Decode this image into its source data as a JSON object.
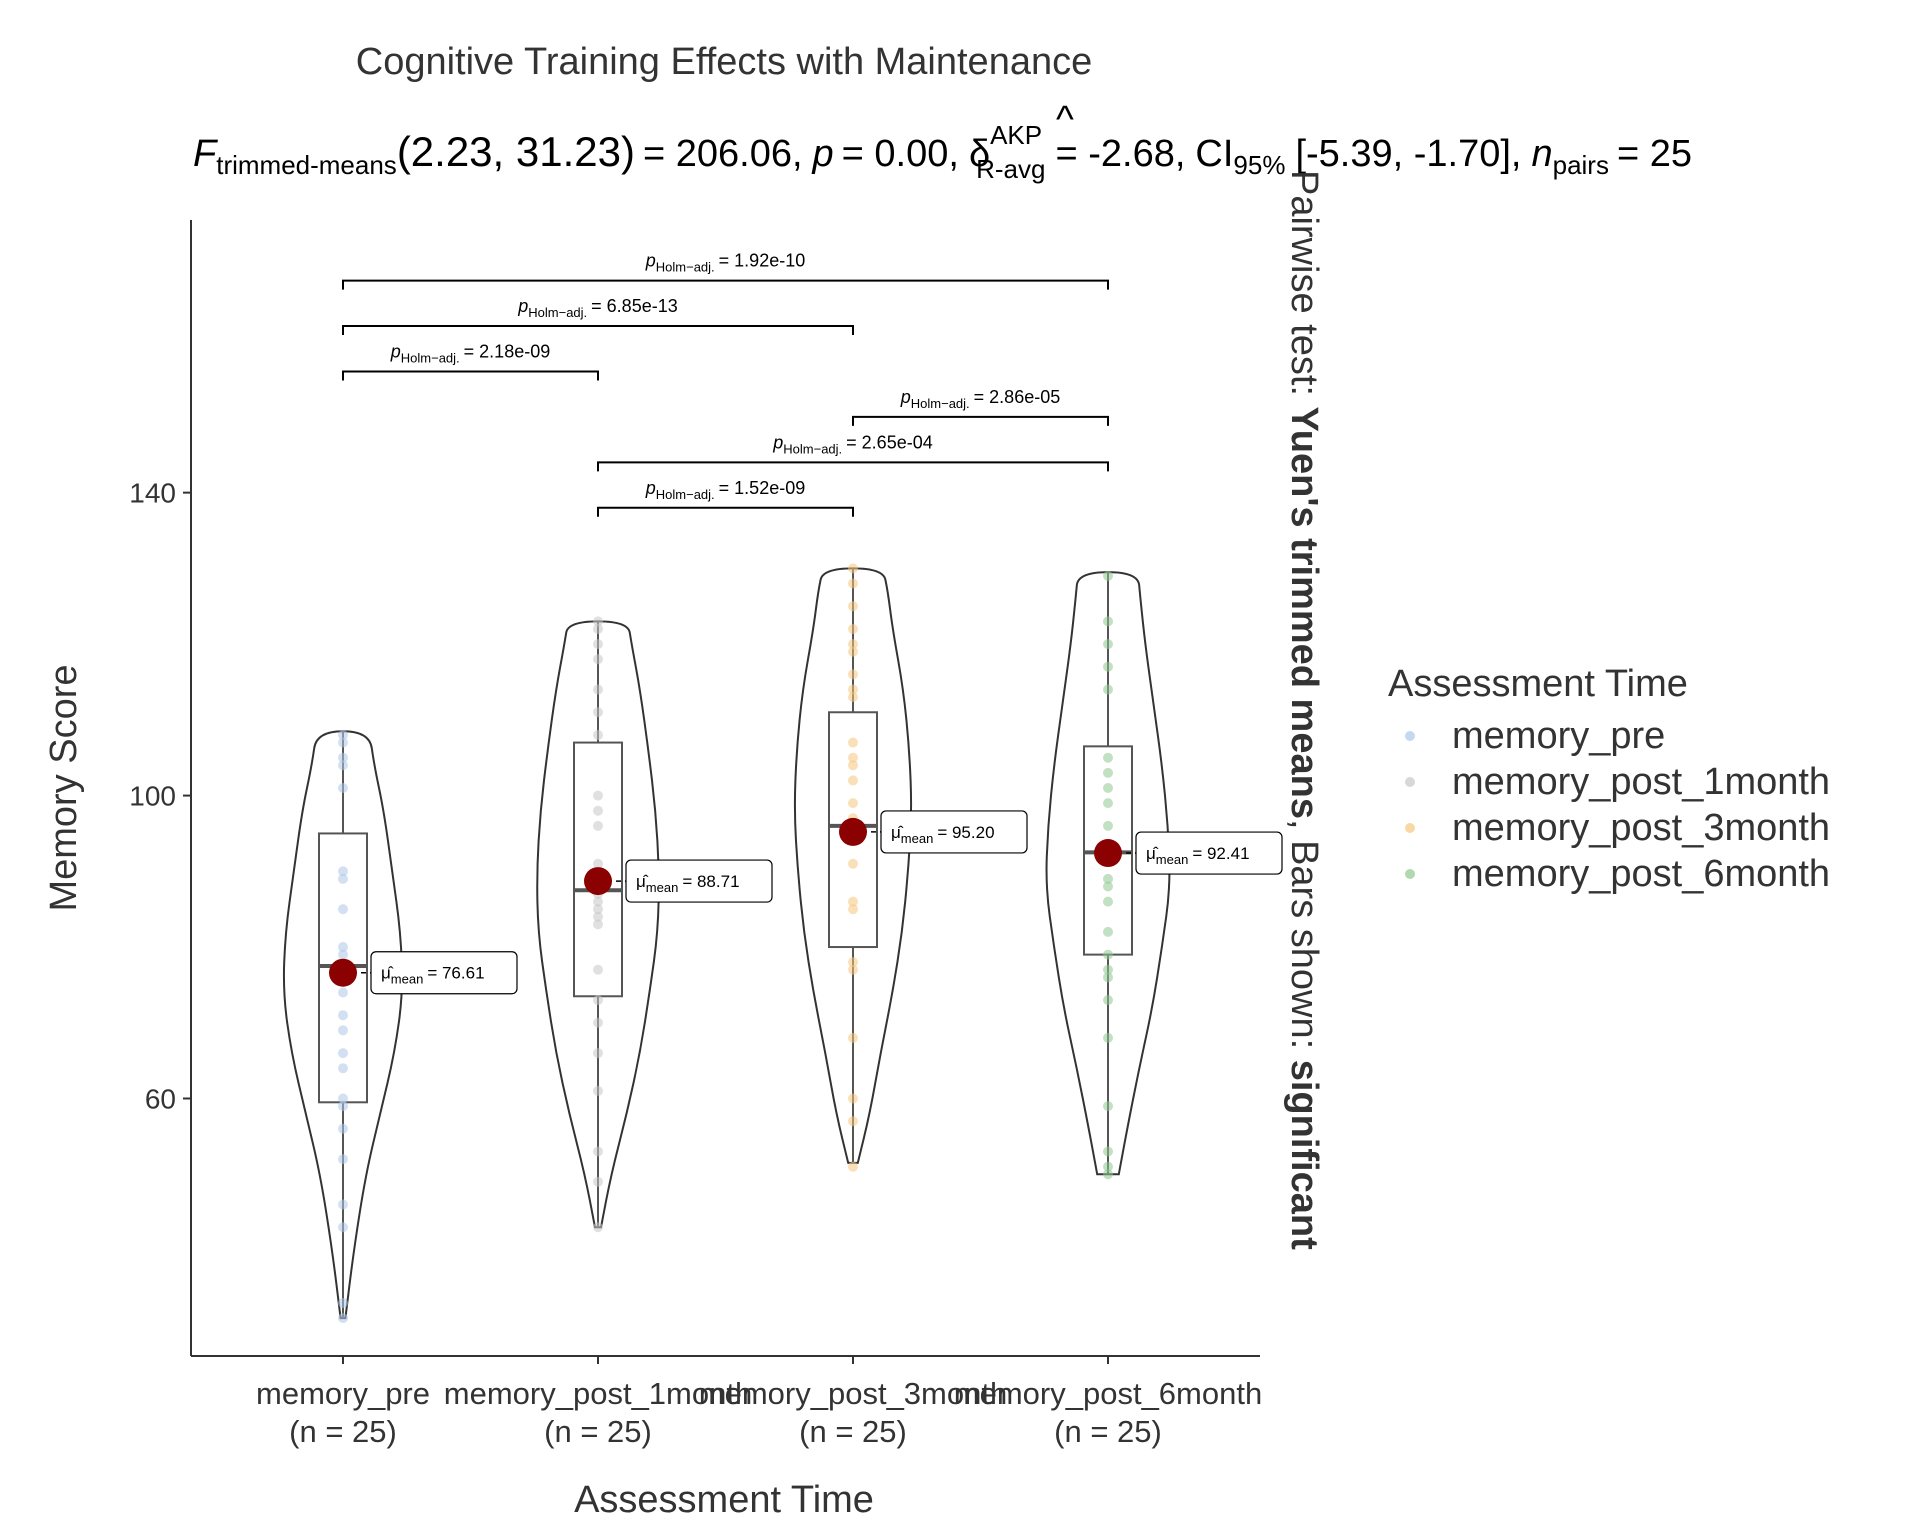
{
  "chart_data": {
    "type": "violin-box",
    "title": "Cognitive Training Effects with Maintenance",
    "subtitle": {
      "f_symbol": "F",
      "f_sub": "trimmed-means",
      "df": "(2.23, 31.23)",
      "f_value": "= 206.06,",
      "p_symbol": "p",
      "p_value": "= 0.00,",
      "effect_symbol": "δ",
      "effect_sup": "AKP",
      "effect_sub": "R-avg",
      "effect_value": "= -2.68,",
      "ci_symbol": "CI",
      "ci_sub": "95%",
      "ci_value": "[-5.39, -1.70],",
      "n_symbol": "n",
      "n_sub": "pairs",
      "n_value": "= 25"
    },
    "xlabel": "Assessment Time",
    "ylabel": "Memory Score",
    "ylim": [
      26,
      176
    ],
    "yticks": [
      60,
      100,
      140
    ],
    "y_tick_labels": [
      "60",
      "100",
      "140"
    ],
    "categories": [
      "memory_pre",
      "memory_post_1month",
      "memory_post_3month",
      "memory_post_6month"
    ],
    "category_n": [
      "(n = 25)",
      "(n = 25)",
      "(n = 25)",
      "(n = 25)"
    ],
    "colors": [
      "#aec7e8",
      "#c7c7c7",
      "#f5c77e",
      "#8fc98f"
    ],
    "mean_color": "#8b0000",
    "means": [
      76.61,
      88.71,
      95.2,
      92.41
    ],
    "mean_labels": [
      "= 76.61",
      "= 88.71",
      "= 95.20",
      "= 92.41"
    ],
    "mean_label_symbol": "μ̂",
    "mean_label_sub": "mean",
    "boxes": [
      {
        "min": 31,
        "q1": 59.5,
        "median": 77.5,
        "q3": 95,
        "max": 108.5
      },
      {
        "min": 43,
        "q1": 73.5,
        "median": 87.5,
        "q3": 107,
        "max": 123
      },
      {
        "min": 51.5,
        "q1": 80,
        "median": 96,
        "q3": 111,
        "max": 130
      },
      {
        "min": 50,
        "q1": 79,
        "median": 92.5,
        "q3": 106.5,
        "max": 129.5
      }
    ],
    "points": [
      [
        108,
        107,
        105,
        104,
        101,
        90,
        89,
        85,
        80,
        79,
        77,
        76,
        74,
        71,
        69,
        66,
        60,
        59,
        56,
        52,
        46,
        43,
        33,
        31,
        64
      ],
      [
        123,
        122,
        120,
        118,
        114,
        111,
        100,
        98,
        91,
        88,
        87,
        86,
        85,
        84,
        83,
        73,
        70,
        66,
        61,
        53,
        49,
        43,
        108,
        96,
        77
      ],
      [
        130,
        128,
        125,
        122,
        120,
        119,
        116,
        114,
        113,
        107,
        105,
        104,
        99,
        97,
        94,
        91,
        86,
        85,
        78,
        77,
        68,
        60,
        57,
        51,
        102
      ],
      [
        129,
        123,
        120,
        117,
        114,
        105,
        103,
        101,
        99,
        96,
        93,
        92,
        89,
        88,
        82,
        79,
        77,
        76,
        73,
        68,
        59,
        53,
        51,
        50,
        86
      ]
    ],
    "violins": [
      [
        [
          31,
          0.04
        ],
        [
          40,
          0.18
        ],
        [
          50,
          0.38
        ],
        [
          58,
          0.62
        ],
        [
          66,
          0.86
        ],
        [
          74,
          1.0
        ],
        [
          82,
          0.96
        ],
        [
          90,
          0.82
        ],
        [
          98,
          0.68
        ],
        [
          104,
          0.52
        ],
        [
          108.5,
          0.44
        ]
      ],
      [
        [
          43,
          0.05
        ],
        [
          50,
          0.22
        ],
        [
          58,
          0.48
        ],
        [
          66,
          0.7
        ],
        [
          74,
          0.86
        ],
        [
          82,
          1.0
        ],
        [
          90,
          1.02
        ],
        [
          98,
          0.96
        ],
        [
          106,
          0.84
        ],
        [
          114,
          0.7
        ],
        [
          120,
          0.56
        ],
        [
          123,
          0.5
        ]
      ],
      [
        [
          51.5,
          0.08
        ],
        [
          58,
          0.28
        ],
        [
          66,
          0.46
        ],
        [
          74,
          0.66
        ],
        [
          82,
          0.82
        ],
        [
          90,
          0.92
        ],
        [
          98,
          0.98
        ],
        [
          106,
          0.94
        ],
        [
          114,
          0.84
        ],
        [
          122,
          0.66
        ],
        [
          127,
          0.58
        ],
        [
          130,
          0.5
        ]
      ],
      [
        [
          50,
          0.18
        ],
        [
          56,
          0.32
        ],
        [
          64,
          0.52
        ],
        [
          72,
          0.74
        ],
        [
          80,
          0.9
        ],
        [
          88,
          1.04
        ],
        [
          96,
          1.0
        ],
        [
          104,
          0.9
        ],
        [
          112,
          0.76
        ],
        [
          120,
          0.62
        ],
        [
          126,
          0.54
        ],
        [
          129.5,
          0.5
        ]
      ]
    ],
    "comparisons": [
      {
        "from": 0,
        "to": 1,
        "label": "= 2.18e-09",
        "y": 156
      },
      {
        "from": 0,
        "to": 2,
        "label": "= 6.85e-13",
        "y": 162
      },
      {
        "from": 0,
        "to": 3,
        "label": "= 1.92e-10",
        "y": 168
      },
      {
        "from": 1,
        "to": 2,
        "label": "= 1.52e-09",
        "y": 138
      },
      {
        "from": 1,
        "to": 3,
        "label": "= 2.65e-04",
        "y": 144
      },
      {
        "from": 2,
        "to": 3,
        "label": "= 2.86e-05",
        "y": 150
      }
    ],
    "p_symbol": "p",
    "p_sub": "Holm−adj.",
    "legend_title": "Assessment Time",
    "legend_placement": "right",
    "caption": {
      "prefix": "Pairwise test: ",
      "test": "Yuen's trimmed means",
      "middle": ", Bars shown: ",
      "shown": "significant"
    },
    "grid": false
  }
}
